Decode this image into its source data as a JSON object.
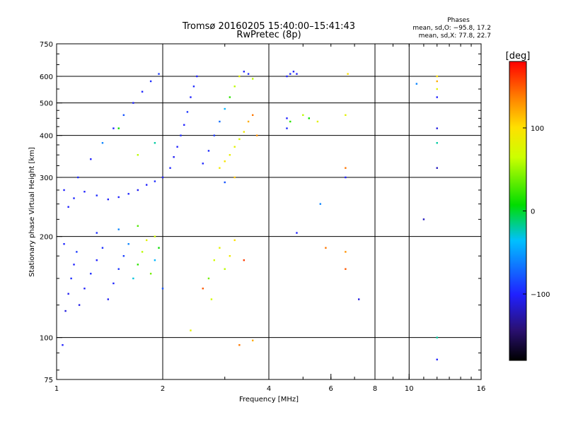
{
  "header": {
    "title_line1": "Tromsø 20160205 15:40:00–15:41:43",
    "title_line2": "RwPretec (8p)",
    "stats_title": "Phases",
    "stats_o": "mean, sd,O: −95.8, 17.2",
    "stats_x": "mean, sd,X:  77.8, 22.7"
  },
  "chart_data": {
    "type": "scatter",
    "xlabel": "Frequency [MHz]",
    "ylabel": "Stationary phase Virtual Height [km]",
    "x_scale": "log",
    "y_scale": "log",
    "xlim": [
      1,
      16
    ],
    "ylim": [
      75,
      750
    ],
    "x_ticks": [
      1,
      2,
      4,
      6,
      8,
      10,
      16
    ],
    "x_tick_labels": [
      "1",
      "2",
      "4",
      "6",
      "8",
      "10",
      "16"
    ],
    "y_ticks": [
      75,
      100,
      200,
      300,
      400,
      500,
      600,
      750
    ],
    "y_tick_labels": [
      "75",
      "100",
      "200",
      "300",
      "400",
      "500",
      "600",
      "750"
    ],
    "x_grid": [
      2,
      4,
      8,
      10
    ],
    "y_grid": [
      100,
      200,
      300,
      400,
      500,
      600
    ],
    "grid": true,
    "colorbar": {
      "label": "[deg]",
      "range": [
        -180,
        180
      ],
      "ticks": [
        100,
        0,
        -100
      ],
      "tick_labels": [
        "100",
        "0",
        "−100"
      ]
    },
    "points": [
      [
        1.04,
        95,
        -100
      ],
      [
        1.06,
        120,
        -110
      ],
      [
        1.08,
        135,
        -105
      ],
      [
        1.1,
        150,
        -95
      ],
      [
        1.12,
        165,
        -100
      ],
      [
        1.14,
        180,
        -90
      ],
      [
        1.05,
        190,
        -98
      ],
      [
        1.16,
        125,
        -108
      ],
      [
        1.2,
        140,
        -102
      ],
      [
        1.25,
        155,
        -96
      ],
      [
        1.3,
        170,
        -100
      ],
      [
        1.35,
        185,
        -94
      ],
      [
        1.4,
        130,
        -104
      ],
      [
        1.45,
        145,
        -99
      ],
      [
        1.5,
        160,
        -92
      ],
      [
        1.55,
        175,
        -88
      ],
      [
        1.6,
        190,
        -60
      ],
      [
        1.65,
        150,
        -30
      ],
      [
        1.7,
        165,
        20
      ],
      [
        1.75,
        180,
        60
      ],
      [
        1.8,
        195,
        80
      ],
      [
        1.85,
        155,
        40
      ],
      [
        1.9,
        170,
        -40
      ],
      [
        1.95,
        185,
        10
      ],
      [
        2.0,
        140,
        -80
      ],
      [
        1.3,
        205,
        -95
      ],
      [
        1.5,
        210,
        -60
      ],
      [
        1.7,
        215,
        30
      ],
      [
        1.9,
        200,
        70
      ],
      [
        1.08,
        245,
        -100
      ],
      [
        1.12,
        260,
        -98
      ],
      [
        1.2,
        272,
        -100
      ],
      [
        1.3,
        265,
        -96
      ],
      [
        1.4,
        258,
        -102
      ],
      [
        1.5,
        262,
        -100
      ],
      [
        1.6,
        268,
        -98
      ],
      [
        1.7,
        275,
        -104
      ],
      [
        1.8,
        285,
        -100
      ],
      [
        1.9,
        292,
        -96
      ],
      [
        2.0,
        300,
        -100
      ],
      [
        2.1,
        320,
        -98
      ],
      [
        2.15,
        345,
        -104
      ],
      [
        2.2,
        370,
        -100
      ],
      [
        2.25,
        400,
        -96
      ],
      [
        2.3,
        430,
        -100
      ],
      [
        2.35,
        470,
        -92
      ],
      [
        2.4,
        520,
        -100
      ],
      [
        2.45,
        560,
        -96
      ],
      [
        2.5,
        600,
        -100
      ],
      [
        1.95,
        610,
        -90
      ],
      [
        1.85,
        580,
        -95
      ],
      [
        1.75,
        540,
        -98
      ],
      [
        1.65,
        500,
        -100
      ],
      [
        1.55,
        460,
        -80
      ],
      [
        1.45,
        420,
        -100
      ],
      [
        1.35,
        380,
        -60
      ],
      [
        1.25,
        340,
        -100
      ],
      [
        1.15,
        300,
        -96
      ],
      [
        1.05,
        275,
        -100
      ],
      [
        1.5,
        420,
        10
      ],
      [
        1.7,
        350,
        60
      ],
      [
        1.9,
        380,
        -20
      ],
      [
        2.6,
        330,
        -98
      ],
      [
        2.7,
        360,
        -96
      ],
      [
        2.8,
        400,
        -90
      ],
      [
        2.9,
        440,
        -70
      ],
      [
        3.0,
        480,
        -40
      ],
      [
        3.1,
        520,
        20
      ],
      [
        3.2,
        560,
        60
      ],
      [
        3.3,
        600,
        80
      ],
      [
        3.4,
        620,
        -100
      ],
      [
        3.5,
        610,
        -96
      ],
      [
        3.6,
        590,
        60
      ],
      [
        2.9,
        320,
        90
      ],
      [
        3.0,
        335,
        95
      ],
      [
        3.1,
        350,
        85
      ],
      [
        3.2,
        370,
        80
      ],
      [
        3.3,
        390,
        75
      ],
      [
        3.4,
        410,
        90
      ],
      [
        3.5,
        440,
        120
      ],
      [
        3.6,
        460,
        140
      ],
      [
        3.7,
        400,
        130
      ],
      [
        3.2,
        300,
        110
      ],
      [
        3.0,
        290,
        -80
      ],
      [
        2.8,
        170,
        70
      ],
      [
        2.9,
        185,
        80
      ],
      [
        3.0,
        160,
        60
      ],
      [
        3.1,
        175,
        90
      ],
      [
        3.2,
        195,
        100
      ],
      [
        2.7,
        150,
        40
      ],
      [
        2.6,
        140,
        150
      ],
      [
        2.75,
        130,
        70
      ],
      [
        3.4,
        170,
        160
      ],
      [
        4.5,
        600,
        -100
      ],
      [
        4.6,
        610,
        -96
      ],
      [
        4.7,
        620,
        -100
      ],
      [
        4.8,
        610,
        -104
      ],
      [
        4.5,
        450,
        -100
      ],
      [
        4.5,
        420,
        -96
      ],
      [
        4.6,
        440,
        20
      ],
      [
        5.0,
        460,
        60
      ],
      [
        5.2,
        450,
        10
      ],
      [
        5.5,
        440,
        80
      ],
      [
        4.8,
        205,
        -100
      ],
      [
        5.6,
        250,
        -60
      ],
      [
        5.8,
        185,
        140
      ],
      [
        6.6,
        180,
        130
      ],
      [
        6.6,
        160,
        150
      ],
      [
        6.6,
        320,
        140
      ],
      [
        6.6,
        300,
        -100
      ],
      [
        6.6,
        460,
        80
      ],
      [
        6.7,
        610,
        100
      ],
      [
        7.2,
        130,
        -110
      ],
      [
        10.5,
        570,
        -60
      ],
      [
        11.0,
        225,
        -120
      ],
      [
        12.0,
        600,
        100
      ],
      [
        12.0,
        580,
        120
      ],
      [
        12.0,
        550,
        80
      ],
      [
        12.0,
        520,
        -100
      ],
      [
        12.0,
        420,
        -110
      ],
      [
        12.0,
        380,
        -20
      ],
      [
        12.0,
        320,
        -120
      ],
      [
        12.0,
        100,
        -20
      ],
      [
        12.0,
        86,
        -100
      ],
      [
        3.3,
        95,
        140
      ],
      [
        3.6,
        98,
        120
      ],
      [
        2.4,
        105,
        80
      ]
    ]
  }
}
